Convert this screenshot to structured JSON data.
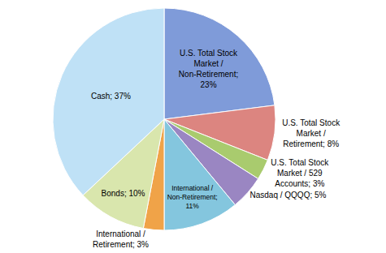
{
  "chart_data": {
    "type": "pie",
    "categories": [
      "U.S. Total Stock Market / Non-Retirement",
      "U.S. Total Stock Market / Retirement",
      "U.S. Total Stock Market / 529 Accounts",
      "Nasdaq / QQQQ",
      "International / Non-Retirement",
      "International / Retirement",
      "Bonds",
      "Cash"
    ],
    "values": [
      23,
      8,
      3,
      5,
      11,
      3,
      10,
      37
    ],
    "value_labels": [
      "U.S. Total Stock Market / Non-Retirement; 23%",
      "U.S. Total Stock Market / Retirement; 8%",
      "U.S. Total Stock Market / 529 Accounts; 3%",
      "Nasdaq / QQQQ; 5%",
      "International / Non-Retirement; 11%",
      "International / Retirement; 3%",
      "Bonds; 10%",
      "Cash; 37%"
    ],
    "colors": [
      "#7f9bd9",
      "#dc8580",
      "#a9cb6e",
      "#9a86c2",
      "#84c6de",
      "#f0a348",
      "#d9e6ad",
      "#bfe1f6"
    ],
    "data_labels": true
  }
}
